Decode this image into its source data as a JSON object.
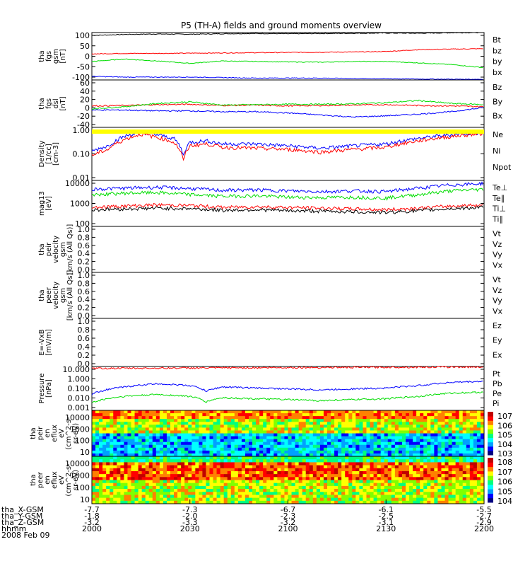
{
  "title": "P5 (TH-A) fields and ground moments overview",
  "colors": {
    "black": "#000000",
    "red": "#ff0000",
    "green": "#00dd00",
    "blue": "#0000ff",
    "yellow": "#ffff00"
  },
  "chart_data": {
    "type": "line",
    "x_range_hhmm": [
      "2000",
      "2200"
    ],
    "panels": [
      {
        "id": "fgs-gsm",
        "ylabel": [
          "tha",
          "fgs",
          "gsm",
          "[nT]"
        ],
        "scale": "linear",
        "ylim": [
          -100,
          100
        ],
        "ticks": [
          "100",
          "50",
          "0",
          "-50",
          "-100"
        ],
        "legend": [
          {
            "name": "Bt",
            "color": "black"
          },
          {
            "name": "bz",
            "color": "red"
          },
          {
            "name": "by",
            "color": "green"
          },
          {
            "name": "bx",
            "color": "blue"
          }
        ],
        "series": [
          {
            "name": "Bt",
            "color": "black",
            "t": [
              0,
              10,
              20,
              30,
              40,
              50,
              60,
              70,
              80,
              90,
              100,
              110,
              120
            ],
            "v": [
              88,
              92,
              94,
              93,
              95,
              96,
              95,
              96,
              97,
              98,
              97,
              99,
              100
            ]
          },
          {
            "name": "bz",
            "color": "red",
            "t": [
              0,
              10,
              20,
              30,
              40,
              50,
              60,
              70,
              80,
              90,
              100,
              110,
              120
            ],
            "v": [
              10,
              12,
              12,
              13,
              14,
              15,
              16,
              17,
              18,
              20,
              28,
              30,
              32
            ]
          },
          {
            "name": "by",
            "color": "green",
            "t": [
              0,
              10,
              20,
              30,
              40,
              50,
              60,
              70,
              80,
              90,
              100,
              110,
              120
            ],
            "v": [
              -22,
              -12,
              -20,
              -30,
              -20,
              -22,
              -24,
              -25,
              -22,
              -22,
              -28,
              -35,
              -48
            ]
          },
          {
            "name": "bx",
            "color": "blue",
            "t": [
              0,
              10,
              20,
              30,
              40,
              50,
              60,
              70,
              80,
              90,
              100,
              110,
              120
            ],
            "v": [
              -85,
              -88,
              -88,
              -88,
              -90,
              -92,
              -92,
              -92,
              -94,
              -95,
              -96,
              -97,
              -97
            ]
          }
        ]
      },
      {
        "id": "fgs-dsl",
        "ylabel": [
          "tha",
          "fgs",
          "dsl",
          "[nT]"
        ],
        "scale": "linear",
        "ylim": [
          -50,
          65
        ],
        "ticks": [
          "60",
          "40",
          "20",
          "0",
          "-20",
          "-40"
        ],
        "legend": [
          {
            "name": "Bz",
            "color": "red"
          },
          {
            "name": "By",
            "color": "green"
          },
          {
            "name": "Bx",
            "color": "blue"
          }
        ],
        "series": [
          {
            "name": "Bz",
            "color": "red",
            "t": [
              0,
              10,
              20,
              30,
              40,
              50,
              60,
              70,
              80,
              90,
              100,
              110,
              120
            ],
            "v": [
              2,
              3,
              5,
              6,
              3,
              4,
              2,
              3,
              4,
              5,
              3,
              2,
              0
            ]
          },
          {
            "name": "By",
            "color": "green",
            "t": [
              0,
              10,
              20,
              30,
              40,
              50,
              60,
              70,
              80,
              90,
              100,
              110,
              120
            ],
            "v": [
              -5,
              0,
              8,
              12,
              4,
              5,
              6,
              6,
              7,
              10,
              15,
              8,
              5
            ]
          },
          {
            "name": "Bx",
            "color": "blue",
            "t": [
              0,
              10,
              20,
              30,
              40,
              50,
              60,
              70,
              80,
              90,
              100,
              110,
              120
            ],
            "v": [
              -8,
              -8,
              -10,
              -10,
              -12,
              -12,
              -15,
              -20,
              -25,
              -22,
              -18,
              -12,
              -2
            ]
          }
        ]
      },
      {
        "id": "density",
        "ylabel": [
          "Density",
          "[1/cc]",
          "[cm-3]"
        ],
        "scale": "log",
        "ylim": [
          0.01,
          1.4
        ],
        "ticks": [
          "1.00",
          "0.10",
          "0.01"
        ],
        "legend": [
          {
            "name": "Ne",
            "color": "red"
          },
          {
            "name": "Ni",
            "color": "black"
          },
          {
            "name": "Npot",
            "color": "blue"
          }
        ],
        "series": [
          {
            "name": "Npot",
            "color": "blue",
            "t": [
              0,
              5,
              10,
              15,
              20,
              25,
              28,
              30,
              35,
              40,
              50,
              60,
              70,
              80,
              90,
              100,
              110,
              120
            ],
            "v": [
              0.15,
              0.25,
              0.6,
              0.9,
              0.7,
              0.5,
              0.1,
              0.35,
              0.4,
              0.3,
              0.3,
              0.25,
              0.2,
              0.25,
              0.3,
              0.5,
              0.7,
              0.9
            ]
          },
          {
            "name": "Ne",
            "color": "red",
            "t": [
              0,
              5,
              10,
              15,
              20,
              25,
              28,
              30,
              35,
              40,
              50,
              60,
              70,
              80,
              90,
              100,
              110,
              120
            ],
            "v": [
              0.1,
              0.18,
              0.45,
              0.75,
              0.55,
              0.35,
              0.06,
              0.25,
              0.3,
              0.22,
              0.2,
              0.18,
              0.14,
              0.18,
              0.22,
              0.4,
              0.6,
              0.8
            ]
          }
        ]
      },
      {
        "id": "temp",
        "ylabel": [
          "mag13",
          "[eV]"
        ],
        "scale": "log",
        "ylim": [
          100,
          11000
        ],
        "ticks": [
          "10000",
          "1000",
          "100"
        ],
        "legend": [
          {
            "name": "Te⊥",
            "color": "red"
          },
          {
            "name": "Te∥",
            "color": "black"
          },
          {
            "name": "Ti⊥",
            "color": "blue"
          },
          {
            "name": "Ti∥",
            "color": "green"
          }
        ],
        "series": [
          {
            "name": "Ti⊥",
            "color": "blue",
            "t": [
              0,
              10,
              20,
              30,
              40,
              50,
              60,
              70,
              80,
              90,
              100,
              110,
              120
            ],
            "v": [
              4500,
              5000,
              5500,
              4800,
              4000,
              4200,
              3800,
              3500,
              3800,
              3500,
              5000,
              7000,
              8000
            ]
          },
          {
            "name": "Ti∥",
            "color": "green",
            "t": [
              0,
              10,
              20,
              30,
              40,
              50,
              60,
              70,
              80,
              90,
              100,
              110,
              120
            ],
            "v": [
              2500,
              3000,
              3200,
              2600,
              2200,
              2300,
              2000,
              1900,
              2000,
              1800,
              2600,
              3800,
              4500
            ]
          },
          {
            "name": "Te⊥",
            "color": "red",
            "t": [
              0,
              10,
              20,
              30,
              40,
              50,
              60,
              70,
              80,
              90,
              100,
              110,
              120
            ],
            "v": [
              700,
              800,
              900,
              850,
              700,
              750,
              700,
              650,
              600,
              550,
              650,
              800,
              900
            ]
          },
          {
            "name": "Te∥",
            "color": "black",
            "t": [
              0,
              10,
              20,
              30,
              40,
              50,
              60,
              70,
              80,
              90,
              100,
              110,
              120
            ],
            "v": [
              550,
              600,
              650,
              620,
              520,
              560,
              500,
              480,
              450,
              420,
              500,
              620,
              700
            ]
          }
        ]
      },
      {
        "id": "peir-vel",
        "ylabel": [
          "tha",
          "peir",
          "velocity",
          "gsm",
          "[km/s (All Qs)]"
        ],
        "scale": "linear",
        "ylim": [
          0,
          1
        ],
        "ticks": [
          "1.0",
          "0.8",
          "0.6",
          "0.4",
          "0.2",
          "0.0"
        ],
        "legend": [
          {
            "name": "Vt",
            "color": "black"
          },
          {
            "name": "Vz",
            "color": "red"
          },
          {
            "name": "Vy",
            "color": "green"
          },
          {
            "name": "Vx",
            "color": "blue"
          }
        ],
        "series": []
      },
      {
        "id": "peer-vel",
        "ylabel": [
          "tha",
          "peer",
          "velocity",
          "gsm",
          "[km/s (All Qs)]"
        ],
        "scale": "linear",
        "ylim": [
          0,
          1
        ],
        "ticks": [
          "1.0",
          "0.8",
          "0.6",
          "0.4",
          "0.2",
          "0.0"
        ],
        "legend": [
          {
            "name": "Vt",
            "color": "black"
          },
          {
            "name": "Vz",
            "color": "red"
          },
          {
            "name": "Vy",
            "color": "green"
          },
          {
            "name": "Vx",
            "color": "blue"
          }
        ],
        "series": []
      },
      {
        "id": "efield",
        "ylabel": [
          "E=-VxB",
          "[mV/m]"
        ],
        "scale": "linear",
        "ylim": [
          0,
          1
        ],
        "ticks": [
          "1.0",
          "0.8",
          "0.6",
          "0.4",
          "0.2",
          "0.0"
        ],
        "legend": [
          {
            "name": "Ez",
            "color": "red"
          },
          {
            "name": "Ey",
            "color": "green"
          },
          {
            "name": "Ex",
            "color": "blue"
          }
        ],
        "series": []
      },
      {
        "id": "pressure",
        "ylabel": [
          "Pressure",
          "[nPa]"
        ],
        "scale": "log",
        "ylim": [
          0.001,
          12
        ],
        "ticks": [
          "10.000",
          "1.000",
          "0.100",
          "0.010",
          "0.001"
        ],
        "legend": [
          {
            "name": "Pt",
            "color": "black"
          },
          {
            "name": "Pb",
            "color": "red"
          },
          {
            "name": "Pe",
            "color": "green"
          },
          {
            "name": "Pi",
            "color": "blue"
          }
        ],
        "series": [
          {
            "name": "Pb",
            "color": "red",
            "t": [
              0,
              20,
              40,
              60,
              80,
              100,
              120
            ],
            "v": [
              8,
              8.5,
              9,
              9.5,
              10,
              10.5,
              11
            ]
          },
          {
            "name": "Pi",
            "color": "blue",
            "t": [
              0,
              10,
              20,
              30,
              35,
              40,
              50,
              60,
              70,
              80,
              90,
              100,
              110,
              120
            ],
            "v": [
              0.03,
              0.15,
              0.3,
              0.2,
              0.06,
              0.15,
              0.12,
              0.1,
              0.08,
              0.1,
              0.12,
              0.2,
              0.4,
              0.5
            ]
          },
          {
            "name": "Pe",
            "color": "green",
            "t": [
              0,
              10,
              20,
              30,
              35,
              40,
              50,
              60,
              70,
              80,
              90,
              100,
              110,
              120
            ],
            "v": [
              0.005,
              0.02,
              0.03,
              0.02,
              0.006,
              0.015,
              0.012,
              0.01,
              0.008,
              0.01,
              0.012,
              0.02,
              0.04,
              0.05
            ]
          }
        ]
      }
    ],
    "spectrograms": [
      {
        "id": "peir-eflux",
        "ylabel": [
          "tha",
          "peir",
          "en",
          "eflux",
          "eV",
          "(cm^2-s-",
          "sr-eV)"
        ],
        "ticks": [
          "10000",
          "1000",
          "100",
          "10"
        ],
        "colorbar_ticks": [
          "7",
          "6",
          "5",
          "4",
          "3"
        ]
      },
      {
        "id": "peer-eflux",
        "ylabel": [
          "tha",
          "peer",
          "en",
          "eflux",
          "eV",
          "(cm^2-s-",
          "sr-eV)"
        ],
        "ticks": [
          "10000",
          "1000",
          "100",
          "10"
        ],
        "colorbar_ticks": [
          "8",
          "7",
          "6",
          "5",
          "4"
        ]
      }
    ],
    "xaxis": {
      "rows": [
        {
          "label": "tha_X-GSM",
          "values": [
            "-7.7",
            "-7.3",
            "-6.7",
            "-6.1",
            "-5.5"
          ]
        },
        {
          "label": "tha_Y-GSM",
          "values": [
            "-1.8",
            "-2.0",
            "-2.3",
            "-2.5",
            "-2.7"
          ]
        },
        {
          "label": "tha_Z-GSM",
          "values": [
            "-3.2",
            "-3.3",
            "-3.2",
            "-3.1",
            "-2.9"
          ]
        },
        {
          "label": "hhmm",
          "values": [
            "2000",
            "2030",
            "2100",
            "2130",
            "2200"
          ]
        }
      ],
      "date": "2008 Feb 09"
    }
  }
}
